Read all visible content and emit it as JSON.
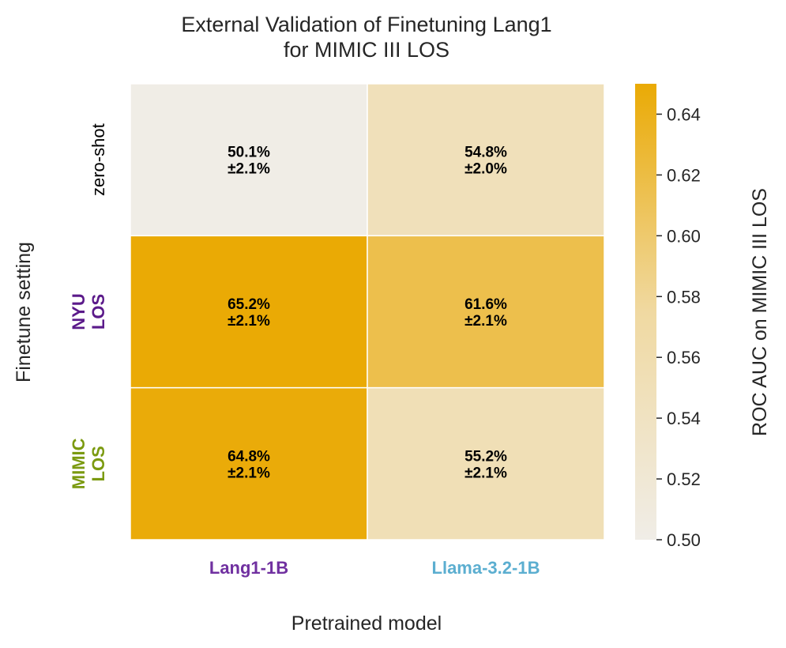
{
  "chart_data": {
    "type": "heatmap",
    "title_lines": [
      "External Validation of Finetuning Lang1",
      "for MIMIC III LOS"
    ],
    "xlabel": "Pretrained model",
    "ylabel": "Finetune setting",
    "x_categories": [
      {
        "label": "Lang1-1B",
        "color": "#7030A0"
      },
      {
        "label": "Llama-3.2-1B",
        "color": "#5BAED0"
      }
    ],
    "y_categories": [
      {
        "lines": [
          "zero-shot"
        ],
        "color": "#000000",
        "bold": false
      },
      {
        "lines": [
          "NYU",
          "LOS"
        ],
        "color": "#5B1A8A",
        "bold": true
      },
      {
        "lines": [
          "MIMIC",
          "LOS"
        ],
        "color": "#7B9A10",
        "bold": true
      }
    ],
    "values": [
      [
        0.501,
        0.548
      ],
      [
        0.652,
        0.616
      ],
      [
        0.648,
        0.552
      ]
    ],
    "annotations": [
      [
        [
          "50.1%",
          "±2.1%"
        ],
        [
          "54.8%",
          "±2.0%"
        ]
      ],
      [
        [
          "65.2%",
          "±2.1%"
        ],
        [
          "61.6%",
          "±2.1%"
        ]
      ],
      [
        [
          "64.8%",
          "±2.1%"
        ],
        [
          "55.2%",
          "±2.1%"
        ]
      ]
    ],
    "colorbar": {
      "label": "ROC AUC on MIMIC III LOS",
      "vmin": 0.5,
      "vmax": 0.65,
      "ticks": [
        "0.50",
        "0.52",
        "0.54",
        "0.56",
        "0.58",
        "0.60",
        "0.62",
        "0.64"
      ],
      "color_low": "#F0EDE7",
      "color_mid": "#F0D9A1",
      "color_high": "#EAAA05"
    }
  }
}
